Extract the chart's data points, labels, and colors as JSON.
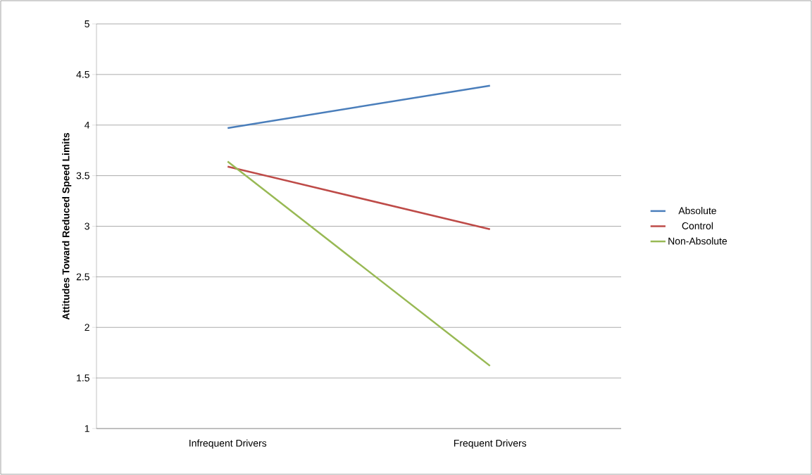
{
  "chart_data": {
    "type": "line",
    "ylabel": "Attitudes Toward Reduced Speed Limits",
    "categories": [
      "Infrequent Drivers",
      "Frequent Drivers"
    ],
    "series": [
      {
        "name": "Absolute",
        "color": "#4a7ebb",
        "values": [
          3.97,
          4.39
        ]
      },
      {
        "name": "Control",
        "color": "#be4b48",
        "values": [
          3.59,
          2.97
        ]
      },
      {
        "name": "Non-Absolute",
        "color": "#98b954",
        "values": [
          3.64,
          1.62
        ]
      }
    ],
    "ylim": [
      1,
      5
    ],
    "yticks": [
      1,
      1.5,
      2,
      2.5,
      3,
      3.5,
      4,
      4.5,
      5
    ],
    "grid": "y",
    "legend": "right",
    "line_style": "solid"
  }
}
